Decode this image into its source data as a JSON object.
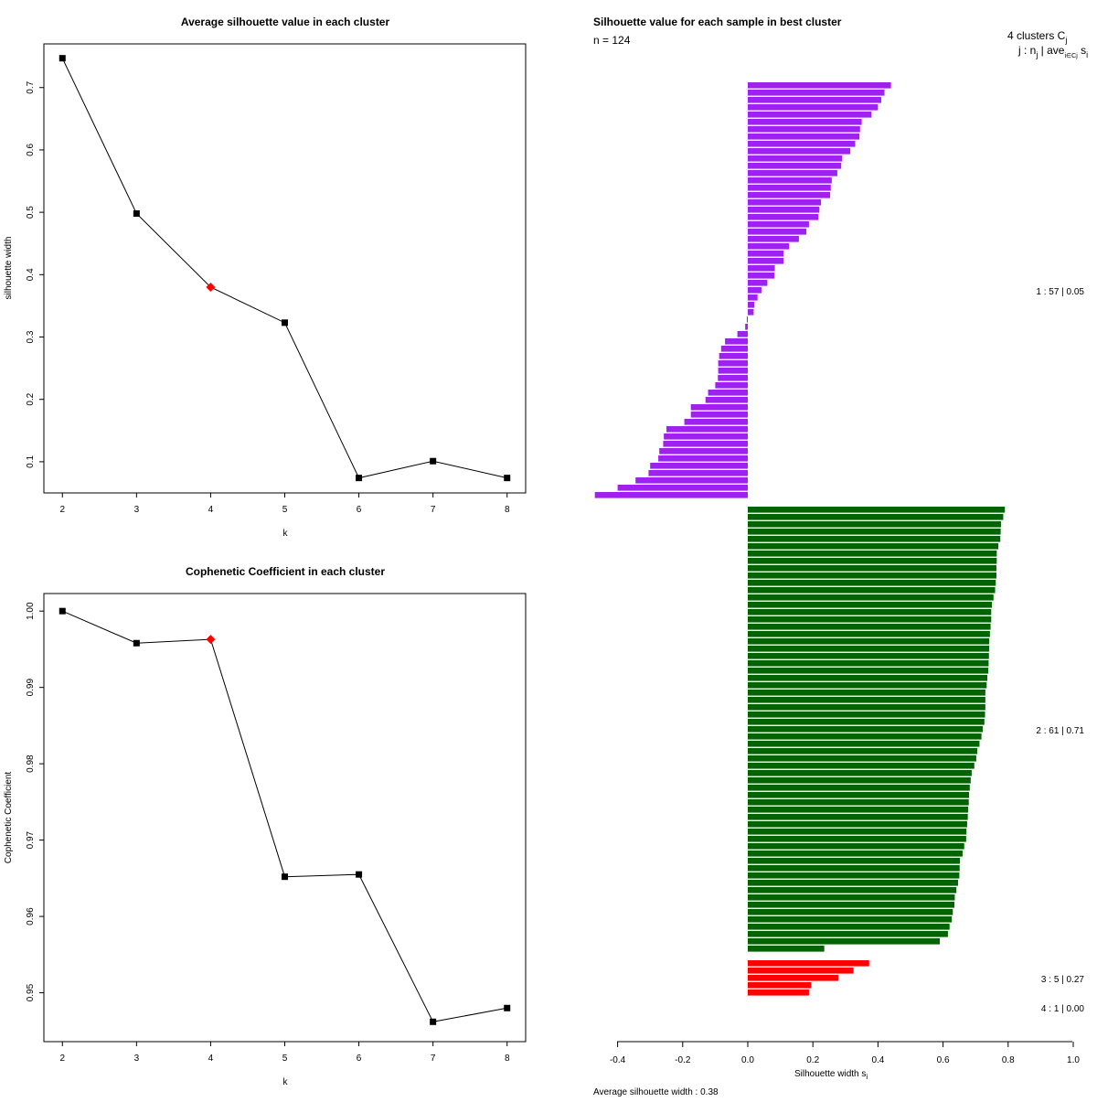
{
  "chart_data": [
    {
      "type": "line",
      "title": "Average silhouette value in each cluster",
      "xlabel": "k",
      "ylabel": "silhouette width",
      "x": [
        2,
        3,
        4,
        5,
        6,
        7,
        8
      ],
      "series": [
        {
          "name": "silhouette",
          "values": [
            0.747,
            0.498,
            0.38,
            0.323,
            0.074,
            0.101,
            0.074
          ]
        }
      ],
      "highlight_x": 4,
      "highlight_color": "#ff0000",
      "xlim": [
        1.75,
        8.25
      ],
      "ylim": [
        0.05,
        0.77
      ],
      "xticks": [
        "2",
        "3",
        "4",
        "5",
        "6",
        "7",
        "8"
      ],
      "yticks": [
        "0.1",
        "0.2",
        "0.3",
        "0.4",
        "0.5",
        "0.6",
        "0.7"
      ]
    },
    {
      "type": "line",
      "title": "Cophenetic Coefficient in each cluster",
      "xlabel": "k",
      "ylabel": "Cophenetic Coefficient",
      "x": [
        2,
        3,
        4,
        5,
        6,
        7,
        8
      ],
      "series": [
        {
          "name": "cophenetic",
          "values": [
            1.0,
            0.9958,
            0.9963,
            0.9652,
            0.9655,
            0.9462,
            0.948
          ]
        }
      ],
      "highlight_x": 4,
      "highlight_color": "#ff0000",
      "xlim": [
        1.75,
        8.25
      ],
      "ylim": [
        0.9436,
        1.0023
      ],
      "xticks": [
        "2",
        "3",
        "4",
        "5",
        "6",
        "7",
        "8"
      ],
      "yticks": [
        "0.95",
        "0.96",
        "0.97",
        "0.98",
        "0.99",
        "1.00"
      ]
    },
    {
      "type": "bar",
      "orientation": "horizontal",
      "title": "Silhouette value for each sample in best cluster",
      "subtitle": "n = 124",
      "xlabel_main": "Silhouette width s",
      "xlabel_sub": "i",
      "xlim": [
        -0.4,
        1.0
      ],
      "xticks": [
        "-0.4",
        "-0.2",
        "0.0",
        "0.2",
        "0.4",
        "0.6",
        "0.8",
        "1.0"
      ],
      "footer": "Average silhouette width :  0.38",
      "header_line1": "4  clusters  C",
      "header_line1_sub": "j",
      "header_line2_a": "j :  n",
      "header_line2_sub1": "j",
      "header_line2_b": " | ave",
      "header_line2_sub2": "i∈Cj",
      "header_line2_c": "  s",
      "header_line2_sub3": "i",
      "clusters": [
        {
          "label": "1 :  57  |  0.05",
          "color": "#a020f0",
          "values": [
            0.44,
            0.42,
            0.41,
            0.4,
            0.38,
            0.35,
            0.345,
            0.343,
            0.33,
            0.315,
            0.29,
            0.287,
            0.275,
            0.258,
            0.255,
            0.253,
            0.225,
            0.22,
            0.217,
            0.188,
            0.18,
            0.157,
            0.127,
            0.11,
            0.11,
            0.083,
            0.082,
            0.06,
            0.042,
            0.03,
            0.02,
            0.018,
            -0.003,
            -0.008,
            -0.032,
            -0.07,
            -0.082,
            -0.088,
            -0.091,
            -0.091,
            -0.092,
            -0.1,
            -0.122,
            -0.13,
            -0.175,
            -0.175,
            -0.195,
            -0.25,
            -0.258,
            -0.26,
            -0.272,
            -0.275,
            -0.3,
            -0.305,
            -0.345,
            -0.4,
            -0.47
          ]
        },
        {
          "label": "2 :  61  |  0.71",
          "color": "#006400",
          "values": [
            0.79,
            0.785,
            0.778,
            0.777,
            0.776,
            0.77,
            0.765,
            0.765,
            0.764,
            0.764,
            0.762,
            0.76,
            0.755,
            0.75,
            0.748,
            0.748,
            0.746,
            0.744,
            0.742,
            0.742,
            0.741,
            0.74,
            0.739,
            0.736,
            0.734,
            0.73,
            0.73,
            0.73,
            0.729,
            0.727,
            0.722,
            0.718,
            0.712,
            0.705,
            0.702,
            0.696,
            0.688,
            0.685,
            0.682,
            0.68,
            0.679,
            0.677,
            0.676,
            0.674,
            0.672,
            0.671,
            0.665,
            0.66,
            0.652,
            0.651,
            0.65,
            0.646,
            0.641,
            0.636,
            0.635,
            0.63,
            0.627,
            0.62,
            0.615,
            0.59,
            0.235
          ]
        },
        {
          "label": "3 :  5  |  0.27",
          "color": "#ff0000",
          "values": [
            0.373,
            0.325,
            0.278,
            0.195,
            0.188
          ]
        },
        {
          "label": "4 :  1  |  0.00",
          "color": "#ff0000",
          "values": []
        }
      ]
    }
  ]
}
